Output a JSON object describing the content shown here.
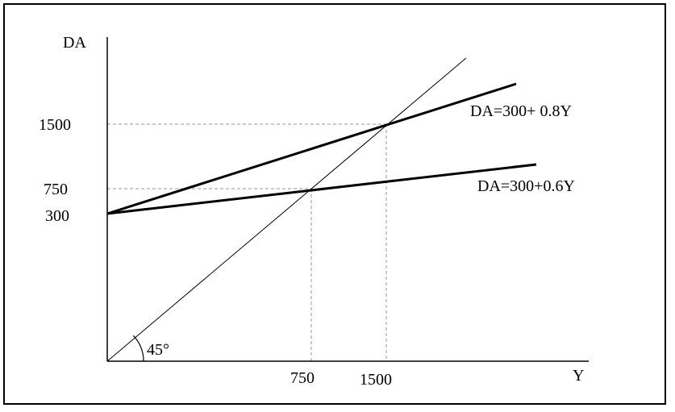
{
  "chart_data": {
    "type": "line",
    "ylabel": "DA",
    "xlabel": "Y",
    "x_ticks": [
      "750",
      "1500"
    ],
    "y_ticks": [
      "1500",
      "750",
      "300"
    ],
    "angle_label": "45°",
    "series": [
      {
        "name": "DA=300+  0.8Y",
        "intercept": 300,
        "slope": 0.8,
        "x": [
          0,
          2500
        ],
        "y": [
          300,
          2300
        ]
      },
      {
        "name": "DA=300+0.6Y",
        "intercept": 300,
        "slope": 0.6,
        "x": [
          0,
          2800
        ],
        "y": [
          300,
          1980
        ]
      },
      {
        "name": "",
        "intercept": 0,
        "slope": 1,
        "x": [
          0,
          2350
        ],
        "y": [
          0,
          2350
        ]
      }
    ],
    "equilibria": [
      {
        "x": 750,
        "y": 750
      },
      {
        "x": 1500,
        "y": 1500
      }
    ],
    "grid": false,
    "colors": {
      "axis": "#000000",
      "line": "#000000",
      "guide": "#9a9a9a"
    }
  }
}
